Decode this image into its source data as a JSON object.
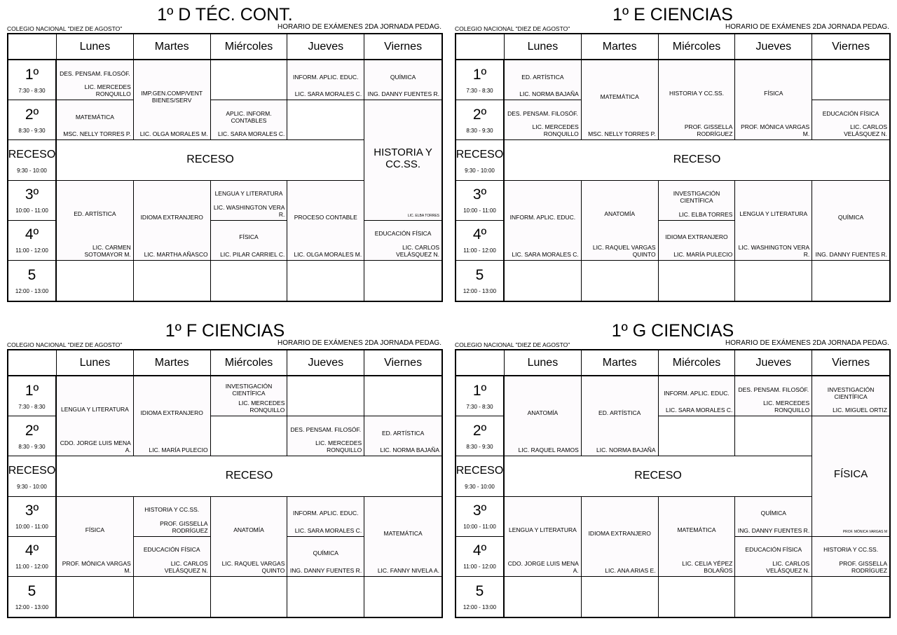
{
  "school": "COLEGIO NACIONAL \"DIEZ DE AGOSTO\"",
  "subtitle": "HORARIO DE EXÁMENES 2DA JORNADA PEDAG.",
  "days": [
    "Lunes",
    "Martes",
    "Miércoles",
    "Jueves",
    "Viernes"
  ],
  "periods": [
    {
      "label": "1º",
      "time": "7:30 - 8:30"
    },
    {
      "label": "2º",
      "time": "8:30 - 9:30"
    },
    {
      "label": "RECESO",
      "time": "9:30 - 10:00"
    },
    {
      "label": "3º",
      "time": "10:00 - 11:00"
    },
    {
      "label": "4º",
      "time": "11:00 - 12:00"
    },
    {
      "label": "5",
      "time": "12:00 - 13:00"
    }
  ],
  "receso_label": "RECESO",
  "schedules": [
    {
      "title": "1º D TÉC. CONT.",
      "cells": [
        {
          "day": "Lunes",
          "periods": [
            "1º"
          ],
          "subject": "DES. PENSAM. FILOSÓF.",
          "teacher": "LIC. MERCEDES RONQUILLO"
        },
        {
          "day": "Lunes",
          "periods": [
            "2º"
          ],
          "subject": "MATEMÁTICA",
          "teacher": "MSC. NELLY TORRES P."
        },
        {
          "day": "Martes",
          "periods": [
            "1º",
            "2º"
          ],
          "subject": "IMP.GEN.COMP/VENT BIENES/SERV",
          "teacher": "LIC. OLGA MORALES M."
        },
        {
          "day": "Miércoles",
          "periods": [
            "2º"
          ],
          "subject": "APLIC. INFORM. CONTABLES",
          "teacher": "LIC. SARA MORALES C."
        },
        {
          "day": "Jueves",
          "periods": [
            "1º"
          ],
          "subject": "INFORM. APLIC. EDUC.",
          "teacher": "LIC. SARA MORALES C."
        },
        {
          "day": "Viernes",
          "periods": [
            "1º"
          ],
          "subject": "QUÍMICA",
          "teacher": "ING. DANNY FUENTES R."
        },
        {
          "day": "Viernes",
          "periods": [
            "2º",
            "RECESO",
            "3º"
          ],
          "subject": "HISTORIA Y CC.SS.",
          "teacher": "LIC. ELBA TORRES"
        },
        {
          "day": "Lunes",
          "periods": [
            "3º",
            "4º"
          ],
          "subject": "ED. ARTÍSTICA",
          "teacher": "LIC. CARMEN SOTOMAYOR M."
        },
        {
          "day": "Martes",
          "periods": [
            "3º",
            "4º"
          ],
          "subject": "IDIOMA EXTRANJERO",
          "teacher": "LIC. MARTHA AÑASCO"
        },
        {
          "day": "Miércoles",
          "periods": [
            "3º"
          ],
          "subject": "LENGUA Y LITERATURA",
          "teacher": "LIC. WASHINGTON VERA R."
        },
        {
          "day": "Miércoles",
          "periods": [
            "4º"
          ],
          "subject": "FÍSICA",
          "teacher": "LIC. PILAR CARRIEL C."
        },
        {
          "day": "Jueves",
          "periods": [
            "3º",
            "4º"
          ],
          "subject": "PROCESO CONTABLE",
          "teacher": "LIC. OLGA MORALES M."
        },
        {
          "day": "Viernes",
          "periods": [
            "4º"
          ],
          "subject": "EDUCACIÓN FÍSICA",
          "teacher": "LIC. CARLOS VELÁSQUEZ N."
        }
      ]
    },
    {
      "title": "1º E CIENCIAS",
      "cells": [
        {
          "day": "Lunes",
          "periods": [
            "1º"
          ],
          "subject": "ED. ARTÍSTICA",
          "teacher": "LIC. NORMA BAJAÑA"
        },
        {
          "day": "Lunes",
          "periods": [
            "2º"
          ],
          "subject": "DES. PENSAM. FILOSÓF.",
          "teacher": "LIC. MERCEDES RONQUILLO"
        },
        {
          "day": "Martes",
          "periods": [
            "1º",
            "2º"
          ],
          "subject": "MATEMÁTICA",
          "teacher": "MSC. NELLY TORRES P."
        },
        {
          "day": "Miércoles",
          "periods": [
            "1º",
            "2º"
          ],
          "subject": "HISTORIA Y CC.SS.",
          "teacher": "PROF. GISSELLA RODRÍGUEZ"
        },
        {
          "day": "Jueves",
          "periods": [
            "1º",
            "2º"
          ],
          "subject": "FÍSICA",
          "teacher": "PROF. MÓNICA VARGAS M."
        },
        {
          "day": "Viernes",
          "periods": [
            "2º"
          ],
          "subject": "EDUCACIÓN FÍSICA",
          "teacher": "LIC. CARLOS VELÁSQUEZ N."
        },
        {
          "day": "Lunes",
          "periods": [
            "3º",
            "4º"
          ],
          "subject": "INFORM. APLIC. EDUC.",
          "teacher": "LIC. SARA MORALES C."
        },
        {
          "day": "Martes",
          "periods": [
            "3º",
            "4º"
          ],
          "subject": "ANATOMÍA",
          "teacher": "LIC. RAQUEL VARGAS QUINTO"
        },
        {
          "day": "Miércoles",
          "periods": [
            "3º"
          ],
          "subject": "INVESTIGACIÓN CIENTÍFICA",
          "teacher": "LIC. ELBA TORRES"
        },
        {
          "day": "Miércoles",
          "periods": [
            "4º"
          ],
          "subject": "IDIOMA EXTRANJERO",
          "teacher": "LIC. MARÍA PULECIO"
        },
        {
          "day": "Jueves",
          "periods": [
            "3º",
            "4º"
          ],
          "subject": "LENGUA Y LITERATURA",
          "teacher": "LIC. WASHINGTON VERA R."
        },
        {
          "day": "Viernes",
          "periods": [
            "3º",
            "4º"
          ],
          "subject": "QUÍMICA",
          "teacher": "ING. DANNY FUENTES R."
        }
      ]
    },
    {
      "title": "1º F CIENCIAS",
      "cells": [
        {
          "day": "Lunes",
          "periods": [
            "1º",
            "2º"
          ],
          "subject": "LENGUA Y LITERATURA",
          "teacher": "CDO. JORGE LUIS MENA A."
        },
        {
          "day": "Martes",
          "periods": [
            "1º",
            "2º"
          ],
          "subject": "IDIOMA EXTRANJERO",
          "teacher": "LIC. MARÍA PULECIO"
        },
        {
          "day": "Miércoles",
          "periods": [
            "1º"
          ],
          "subject": "INVESTIGACIÓN CIENTÍFICA",
          "teacher": "LIC. MERCEDES RONQUILLO"
        },
        {
          "day": "Jueves",
          "periods": [
            "2º"
          ],
          "subject": "DES. PENSAM. FILOSÓF.",
          "teacher": "LIC. MERCEDES RONQUILLO"
        },
        {
          "day": "Viernes",
          "periods": [
            "2º"
          ],
          "subject": "ED. ARTÍSTICA",
          "teacher": "LIC. NORMA BAJAÑA"
        },
        {
          "day": "Lunes",
          "periods": [
            "3º",
            "4º"
          ],
          "subject": "FÍSICA",
          "teacher": "PROF. MÓNICA VARGAS M."
        },
        {
          "day": "Martes",
          "periods": [
            "3º"
          ],
          "subject": "HISTORIA Y CC.SS.",
          "teacher": "PROF. GISSELLA RODRÍGUEZ"
        },
        {
          "day": "Martes",
          "periods": [
            "4º"
          ],
          "subject": "EDUCACIÓN FÍSICA",
          "teacher": "LIC. CARLOS VELÁSQUEZ N."
        },
        {
          "day": "Miércoles",
          "periods": [
            "3º",
            "4º"
          ],
          "subject": "ANATOMÍA",
          "teacher": "LIC. RAQUEL VARGAS QUINTO"
        },
        {
          "day": "Jueves",
          "periods": [
            "3º"
          ],
          "subject": "INFORM. APLIC. EDUC.",
          "teacher": "LIC. SARA MORALES C."
        },
        {
          "day": "Jueves",
          "periods": [
            "4º"
          ],
          "subject": "QUÍMICA",
          "teacher": "ING. DANNY FUENTES R."
        },
        {
          "day": "Viernes",
          "periods": [
            "3º",
            "4º"
          ],
          "subject": "MATEMÁTICA",
          "teacher": "LIC. FANNY NIVELA A."
        }
      ]
    },
    {
      "title": "1º G CIENCIAS",
      "cells": [
        {
          "day": "Lunes",
          "periods": [
            "1º",
            "2º"
          ],
          "subject": "ANATOMÍA",
          "teacher": "LIC. RAQUEL RAMOS"
        },
        {
          "day": "Martes",
          "periods": [
            "1º",
            "2º"
          ],
          "subject": "ED. ARTÍSTICA",
          "teacher": "LIC. NORMA BAJAÑA"
        },
        {
          "day": "Miércoles",
          "periods": [
            "1º"
          ],
          "subject": "INFORM. APLIC. EDUC.",
          "teacher": "LIC. SARA MORALES C."
        },
        {
          "day": "Jueves",
          "periods": [
            "1º"
          ],
          "subject": "DES. PENSAM. FILOSÓF.",
          "teacher": "LIC. MERCEDES RONQUILLO"
        },
        {
          "day": "Viernes",
          "periods": [
            "1º"
          ],
          "subject": "INVESTIGACIÓN CIENTÍFICA",
          "teacher": "LIC. MIGUEL ORTIZ"
        },
        {
          "day": "Viernes",
          "periods": [
            "2º",
            "RECESO",
            "3º"
          ],
          "subject": "FÍSICA",
          "teacher": "PROF. MÓNICA VARGAS M"
        },
        {
          "day": "Lunes",
          "periods": [
            "3º",
            "4º"
          ],
          "subject": "LENGUA Y LITERATURA",
          "teacher": "CDO. JORGE LUIS MENA A."
        },
        {
          "day": "Martes",
          "periods": [
            "3º",
            "4º"
          ],
          "subject": "IDIOMA EXTRANJERO",
          "teacher": "LIC. ANA ARIAS E."
        },
        {
          "day": "Miércoles",
          "periods": [
            "3º",
            "4º"
          ],
          "subject": "MATEMÁTICA",
          "teacher": "LIC. CELIA YÉPEZ BOLAÑOS"
        },
        {
          "day": "Jueves",
          "periods": [
            "3º"
          ],
          "subject": "QUÍMICA",
          "teacher": "ING. DANNY FUENTES R."
        },
        {
          "day": "Jueves",
          "periods": [
            "4º"
          ],
          "subject": "EDUCACIÓN FÍSICA",
          "teacher": "LIC. CARLOS VELÁSQUEZ N."
        },
        {
          "day": "Viernes",
          "periods": [
            "4º"
          ],
          "subject": "HISTORIA Y CC.SS.",
          "teacher": "PROF. GISSELLA RODRÍGUEZ"
        }
      ]
    }
  ]
}
